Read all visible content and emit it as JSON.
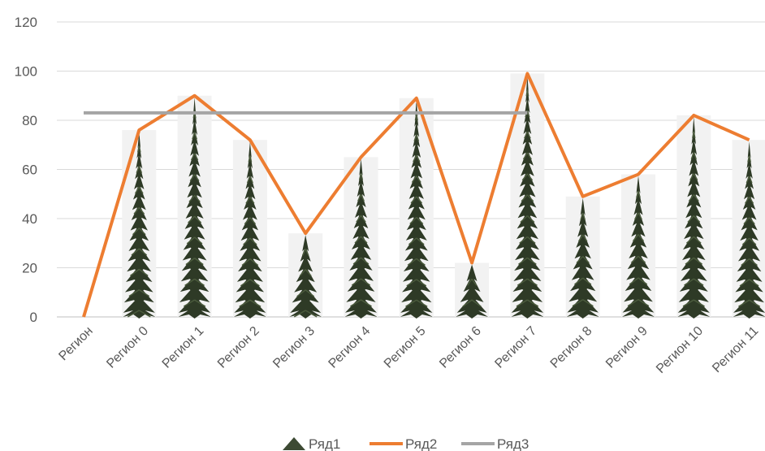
{
  "chart_data": {
    "type": "bar",
    "categories": [
      "Регион",
      "Регион 0",
      "Регион 1",
      "Регион 2",
      "Регион 3",
      "Регион 4",
      "Регион 5",
      "Регион 6",
      "Регион 7",
      "Регион 8",
      "Регион 9",
      "Регион 10",
      "Регион 11"
    ],
    "series": [
      {
        "name": "Ряд1",
        "kind": "bar",
        "style": "pine-tree pictograph",
        "color": "#3d4a33",
        "values": [
          null,
          76,
          90,
          72,
          34,
          65,
          89,
          22,
          99,
          49,
          58,
          82,
          72
        ]
      },
      {
        "name": "Ряд2",
        "kind": "line",
        "color": "#ed7d31",
        "values": [
          0,
          76,
          90,
          72,
          34,
          65,
          89,
          22,
          99,
          49,
          58,
          82,
          72
        ]
      },
      {
        "name": "Ряд3",
        "kind": "line",
        "color": "#a5a5a5",
        "values": [
          83,
          83,
          83,
          83,
          83,
          83,
          83,
          83,
          83,
          null,
          null,
          null,
          null
        ]
      }
    ],
    "yticks": [
      0,
      20,
      40,
      60,
      80,
      100,
      120
    ],
    "ylim": [
      0,
      120
    ],
    "grid": true,
    "legend": "bottom",
    "title": "",
    "xlabel": "",
    "ylabel": ""
  },
  "colors": {
    "gridline": "#d9d9d9",
    "bar_shadow": "#f2f2f2",
    "tree_dark": "#2e3a26",
    "tree_mid": "#4a5a3c"
  }
}
